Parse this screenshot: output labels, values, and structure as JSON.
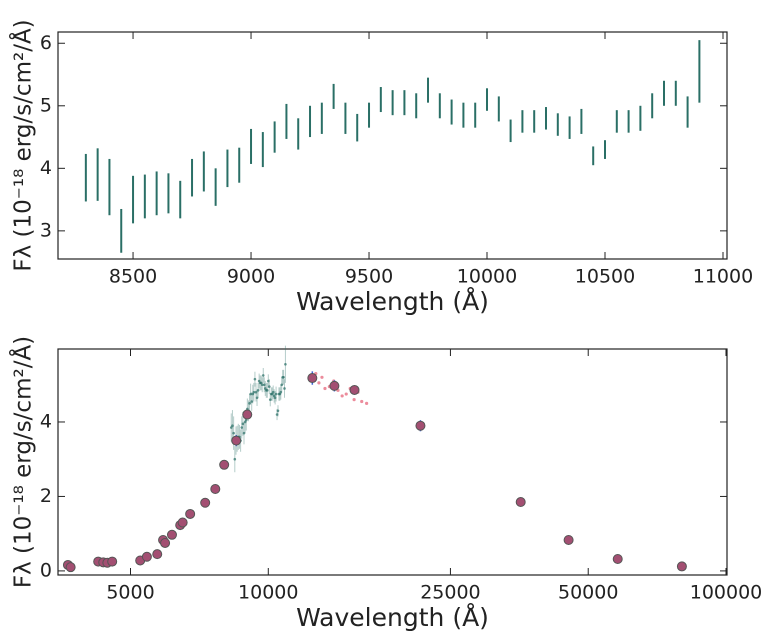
{
  "chart_data": [
    {
      "type": "errorbar",
      "xlabel": "Wavelength (Å)",
      "ylabel": "Fλ (10⁻¹⁸ erg/s/cm²/Å)",
      "x": [
        8300,
        8350,
        8400,
        8450,
        8500,
        8550,
        8600,
        8650,
        8700,
        8750,
        8800,
        8850,
        8900,
        8950,
        9000,
        9050,
        9100,
        9150,
        9200,
        9250,
        9300,
        9350,
        9400,
        9450,
        9500,
        9550,
        9600,
        9650,
        9700,
        9750,
        9800,
        9850,
        9900,
        9950,
        10000,
        10050,
        10100,
        10150,
        10200,
        10250,
        10300,
        10350,
        10400,
        10450,
        10500,
        10550,
        10600,
        10650,
        10700,
        10750,
        10800,
        10850,
        10900
      ],
      "values": [
        3.85,
        3.9,
        3.7,
        3.0,
        3.5,
        3.55,
        3.6,
        3.6,
        3.5,
        3.85,
        3.95,
        3.7,
        4.0,
        4.05,
        4.35,
        4.3,
        4.5,
        4.75,
        4.55,
        4.75,
        4.8,
        5.15,
        4.8,
        4.65,
        4.85,
        5.1,
        5.05,
        5.05,
        5.0,
        5.25,
        5.0,
        4.9,
        4.85,
        4.85,
        5.1,
        4.95,
        4.6,
        4.75,
        4.75,
        4.8,
        4.7,
        4.65,
        4.75,
        4.2,
        4.3,
        4.75,
        4.75,
        4.8,
        5.0,
        5.2,
        5.2,
        4.9,
        5.55
      ],
      "errors": [
        0.38,
        0.42,
        0.45,
        0.35,
        0.38,
        0.35,
        0.35,
        0.32,
        0.3,
        0.3,
        0.32,
        0.3,
        0.3,
        0.28,
        0.28,
        0.28,
        0.25,
        0.28,
        0.25,
        0.25,
        0.25,
        0.2,
        0.25,
        0.22,
        0.2,
        0.2,
        0.2,
        0.2,
        0.2,
        0.2,
        0.2,
        0.2,
        0.2,
        0.2,
        0.18,
        0.2,
        0.18,
        0.18,
        0.18,
        0.18,
        0.18,
        0.18,
        0.2,
        0.15,
        0.15,
        0.18,
        0.18,
        0.2,
        0.2,
        0.2,
        0.2,
        0.25,
        0.5
      ],
      "color": "#2a6f66",
      "xlim": [
        8182,
        11017
      ],
      "ylim": [
        2.55,
        6.18
      ],
      "xticks": [
        8500,
        9000,
        9500,
        10000,
        10500,
        11000
      ],
      "yticks": [
        3,
        4,
        5,
        6
      ]
    },
    {
      "type": "scatter",
      "xscale": "log",
      "xlabel": "Wavelength (Å)",
      "ylabel": "Fλ (10⁻¹⁸ erg/s/cm²/Å)",
      "xlim": [
        3472,
        100500
      ],
      "ylim": [
        -0.11,
        5.96
      ],
      "xticks": [
        5000,
        10000,
        25000,
        50000,
        100000
      ],
      "yticks": [
        0,
        2,
        4
      ],
      "series": [
        {
          "color": "#e0405a",
          "x": [
            12700,
            12900,
            13100,
            13300,
            13600,
            13900,
            14200,
            14500,
            14800,
            15100,
            15400,
            15700,
            16000,
            16400
          ],
          "values": [
            5.3,
            5.05,
            5.2,
            4.9,
            4.95,
            5.1,
            4.85,
            4.7,
            4.75,
            4.9,
            4.6,
            4.8,
            4.55,
            4.5
          ]
        },
        {
          "color": "#a34f72",
          "x": [
            3650,
            3700,
            4250,
            4360,
            4450,
            4560,
            5250,
            5430,
            5720,
            5890,
            5950,
            6160,
            6420,
            6500,
            6750,
            7280,
            7660,
            8010,
            8510,
            8996,
            12480,
            13945,
            15430,
            21500,
            35600,
            45300,
            58000,
            80100
          ],
          "values": [
            0.16,
            0.1,
            0.25,
            0.23,
            0.22,
            0.25,
            0.28,
            0.38,
            0.45,
            0.83,
            0.75,
            0.97,
            1.23,
            1.3,
            1.53,
            1.83,
            2.2,
            2.85,
            3.5,
            4.2,
            5.18,
            4.97,
            4.86,
            3.9,
            1.85,
            0.83,
            0.32,
            0.12
          ],
          "errors": [
            0.05,
            0.05,
            0.05,
            0.05,
            0.05,
            0.05,
            0.05,
            0.05,
            0.05,
            0.05,
            0.05,
            0.05,
            0.08,
            0.08,
            0.08,
            0.08,
            0.08,
            0.08,
            0.15,
            0.1,
            0.18,
            0.15,
            0.12,
            0.15,
            0.12,
            0.06,
            0.05,
            0.05
          ]
        }
      ]
    }
  ]
}
